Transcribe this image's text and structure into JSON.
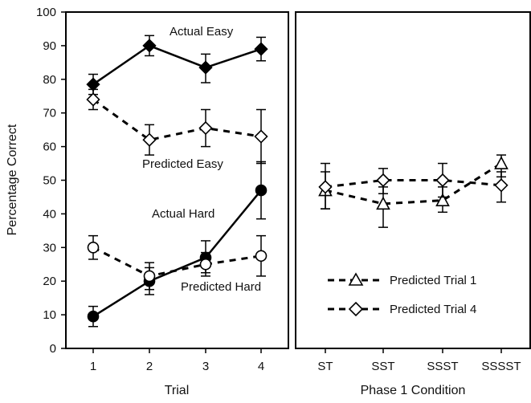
{
  "chart_data": [
    {
      "type": "line",
      "xlabel": "Trial",
      "ylabel": "Percentage Correct",
      "categories": [
        "1",
        "2",
        "3",
        "4"
      ],
      "ylim": [
        0,
        100
      ],
      "yticks": [
        "0",
        "10",
        "20",
        "30",
        "40",
        "50",
        "60",
        "70",
        "80",
        "90",
        "100"
      ],
      "grid": false,
      "series": [
        {
          "name": "Actual Easy",
          "marker": "filled-diamond",
          "line": "solid",
          "color": "#000000",
          "values": [
            78.5,
            90,
            83.5,
            89
          ],
          "err_low": [
            75.5,
            87,
            79,
            85.5
          ],
          "err_high": [
            81.5,
            93,
            87.5,
            92.5
          ]
        },
        {
          "name": "Predicted Easy",
          "marker": "open-diamond",
          "line": "dashed",
          "color": "#000000",
          "values": [
            74,
            62,
            65.5,
            63
          ],
          "err_low": [
            71,
            57.5,
            60,
            55
          ],
          "err_high": [
            77,
            66.5,
            71,
            71
          ]
        },
        {
          "name": "Actual Hard",
          "marker": "filled-circle",
          "line": "solid",
          "color": "#000000",
          "values": [
            9.5,
            20,
            27,
            47
          ],
          "err_low": [
            6.5,
            16,
            22.5,
            38.5
          ],
          "err_high": [
            12.5,
            24,
            32,
            55.5
          ]
        },
        {
          "name": "Predicted Hard",
          "marker": "open-circle",
          "line": "dashed",
          "color": "#000000",
          "values": [
            30,
            21.5,
            25,
            27.5
          ],
          "err_low": [
            26.5,
            17.5,
            21.5,
            21.5
          ],
          "err_high": [
            33.5,
            25.5,
            28.5,
            33.5
          ]
        }
      ]
    },
    {
      "type": "line",
      "xlabel": "Phase 1 Condition",
      "ylabel": "",
      "categories": [
        "ST",
        "SST",
        "SSST",
        "SSSST"
      ],
      "ylim": [
        0,
        100
      ],
      "grid": false,
      "legend_placement": "bottom-center",
      "series": [
        {
          "name": "Predicted Trial 1",
          "marker": "open-triangle",
          "line": "dashed",
          "color": "#000000",
          "values": [
            47,
            43,
            44,
            55
          ],
          "err_low": [
            41.5,
            36,
            40.5,
            51
          ],
          "err_high": [
            52.5,
            48,
            48,
            57.5
          ]
        },
        {
          "name": "Predicted Trial 4",
          "marker": "open-diamond",
          "line": "dashed",
          "color": "#000000",
          "values": [
            48,
            50,
            50,
            48.5
          ],
          "err_low": [
            41.5,
            46,
            45,
            43.5
          ],
          "err_high": [
            55,
            53.5,
            55,
            52.5
          ]
        }
      ]
    }
  ]
}
